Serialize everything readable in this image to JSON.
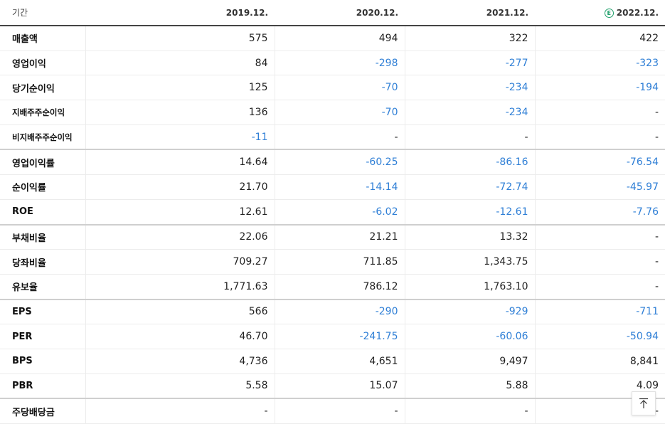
{
  "header": {
    "period_label": "기간",
    "periods": [
      "2019.12.",
      "2020.12.",
      "2021.12.",
      "2022.12."
    ],
    "estimate_badge": "E"
  },
  "rows": [
    {
      "label": "매출액",
      "values": [
        "575",
        "494",
        "322",
        "422"
      ]
    },
    {
      "label": "영업이익",
      "values": [
        "84",
        "-298",
        "-277",
        "-323"
      ]
    },
    {
      "label": "당기순이익",
      "values": [
        "125",
        "-70",
        "-234",
        "-194"
      ]
    },
    {
      "label": "지배주주순이익",
      "values": [
        "136",
        "-70",
        "-234",
        "-"
      ]
    },
    {
      "label": "비지배주주순이익",
      "values": [
        "-11",
        "-",
        "-",
        "-"
      ]
    },
    {
      "label": "영업이익률",
      "values": [
        "14.64",
        "-60.25",
        "-86.16",
        "-76.54"
      ]
    },
    {
      "label": "순이익률",
      "values": [
        "21.70",
        "-14.14",
        "-72.74",
        "-45.97"
      ]
    },
    {
      "label": "ROE",
      "values": [
        "12.61",
        "-6.02",
        "-12.61",
        "-7.76"
      ]
    },
    {
      "label": "부채비율",
      "values": [
        "22.06",
        "21.21",
        "13.32",
        "-"
      ]
    },
    {
      "label": "당좌비율",
      "values": [
        "709.27",
        "711.85",
        "1,343.75",
        "-"
      ]
    },
    {
      "label": "유보율",
      "values": [
        "1,771.63",
        "786.12",
        "1,763.10",
        "-"
      ]
    },
    {
      "label": "EPS",
      "values": [
        "566",
        "-290",
        "-929",
        "-711"
      ]
    },
    {
      "label": "PER",
      "values": [
        "46.70",
        "-241.75",
        "-60.06",
        "-50.94"
      ]
    },
    {
      "label": "BPS",
      "values": [
        "4,736",
        "4,651",
        "9,497",
        "8,841"
      ]
    },
    {
      "label": "PBR",
      "values": [
        "5.58",
        "15.07",
        "5.88",
        "4.09"
      ]
    },
    {
      "label": "주당배당금",
      "values": [
        "-",
        "-",
        "-",
        "-"
      ]
    }
  ],
  "colors": {
    "negative": "#2f7fd6",
    "estimate_badge": "#1f9f6a"
  },
  "scroll_top_icon": "arrow-up-to-line-icon"
}
